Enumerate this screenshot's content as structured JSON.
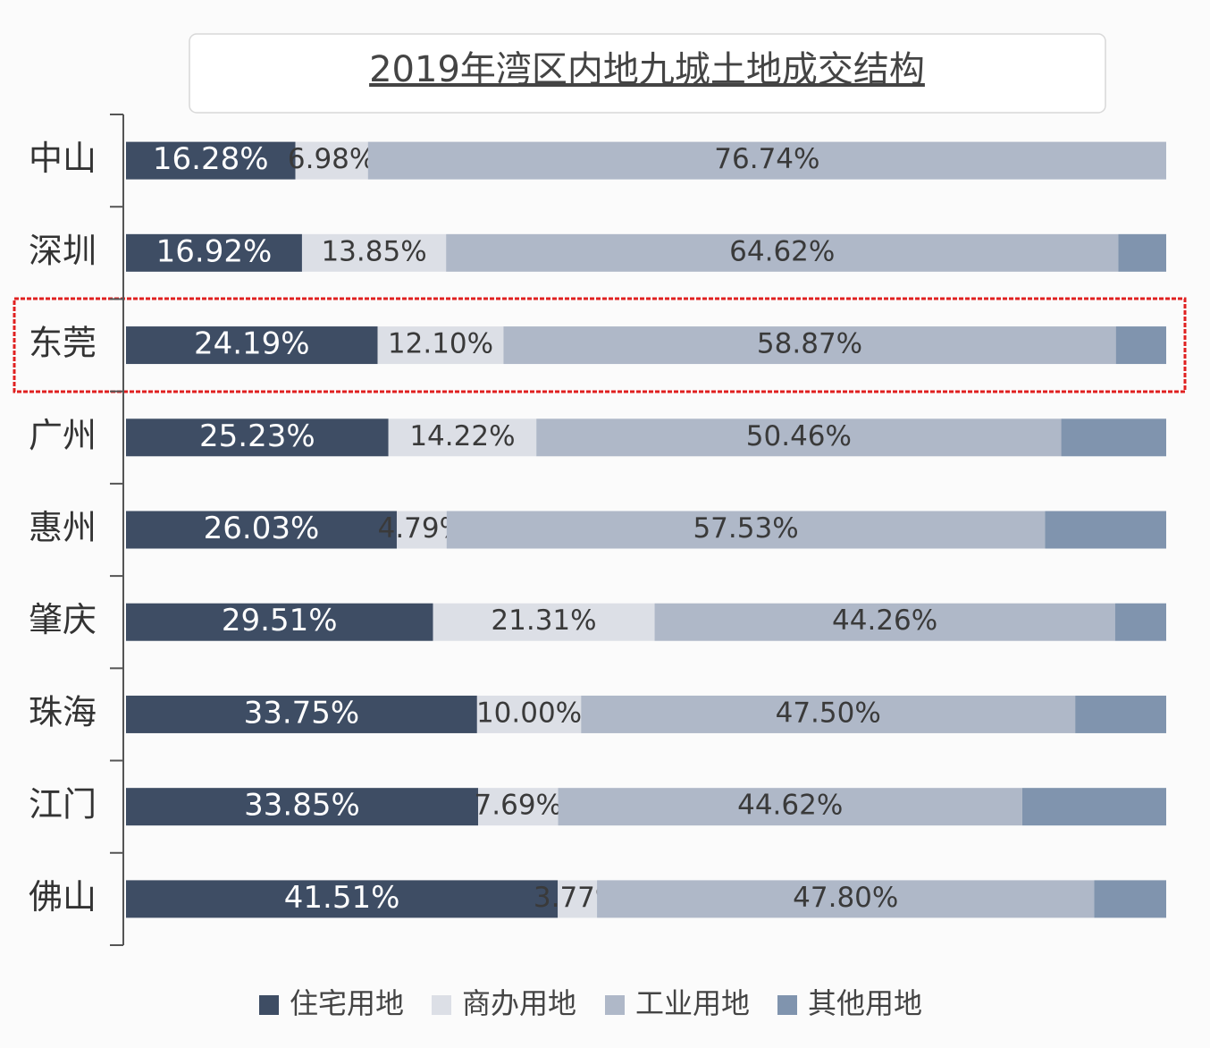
{
  "chart_data": {
    "type": "stacked-bar-100",
    "title": "2019年湾区内地九城土地成交结构",
    "categories": [
      "中山",
      "深圳",
      "东莞",
      "广州",
      "惠州",
      "肇庆",
      "珠海",
      "江门",
      "佛山"
    ],
    "series": [
      {
        "name": "住宅用地",
        "color": "#3e4d64",
        "values": [
          16.28,
          16.92,
          24.19,
          25.23,
          26.03,
          29.51,
          33.75,
          33.85,
          41.51
        ],
        "value_labels": [
          "16.28%",
          "16.92%",
          "24.19%",
          "25.23%",
          "26.03%",
          "29.51%",
          "33.75%",
          "33.85%",
          "41.51%"
        ]
      },
      {
        "name": "商办用地",
        "color": "#dcdfe6",
        "values": [
          6.98,
          13.85,
          12.1,
          14.22,
          4.79,
          21.31,
          10.0,
          7.69,
          3.77
        ],
        "value_labels": [
          "6.98%",
          "13.85%",
          "12.10%",
          "14.22%",
          "4.79%",
          "21.31%",
          "10.00%",
          "7.69%",
          "3.77%"
        ]
      },
      {
        "name": "工业用地",
        "color": "#afb8c8",
        "values": [
          76.74,
          64.62,
          58.87,
          50.46,
          57.53,
          44.26,
          47.5,
          44.62,
          47.8
        ],
        "value_labels": [
          "76.74%",
          "64.62%",
          "58.87%",
          "50.46%",
          "57.53%",
          "44.26%",
          "47.50%",
          "44.62%",
          "47.80%"
        ]
      },
      {
        "name": "其他用地",
        "color": "#8094ae",
        "values": [
          0,
          4.61,
          4.84,
          10.09,
          11.65,
          4.92,
          8.75,
          13.84,
          6.92
        ]
      }
    ],
    "xlim": [
      0,
      100
    ]
  }
}
